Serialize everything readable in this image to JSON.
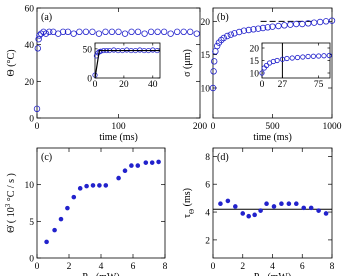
{
  "chart_data": [
    {
      "type": "scatter",
      "label": "(a)",
      "xlabel": [
        {
          "text": "time (ms)"
        }
      ],
      "ylabel": [
        {
          "text": "Θ (°C)"
        }
      ],
      "xlim": [
        0,
        200
      ],
      "ylim": [
        0,
        60
      ],
      "xticks": [
        0,
        100,
        200
      ],
      "yticks": [
        0,
        20,
        40,
        60
      ],
      "series": [
        {
          "color": "#2222cc",
          "marker": "open",
          "x": [
            0,
            1,
            2,
            3,
            5,
            8,
            11,
            15,
            20,
            26,
            32,
            38,
            45,
            52,
            60,
            68,
            76,
            84,
            92,
            100,
            108,
            116,
            124,
            132,
            140,
            148,
            156,
            164,
            172,
            180,
            188,
            196
          ],
          "values": [
            5,
            38,
            43,
            45,
            46,
            47,
            46,
            47,
            47,
            46,
            47,
            47,
            46,
            47,
            47,
            47,
            46,
            47,
            47,
            47,
            46,
            47,
            47,
            46,
            47,
            47,
            47,
            46,
            47,
            47,
            47,
            46
          ]
        }
      ],
      "inset": {
        "type": "scatter",
        "xlim": [
          0,
          45
        ],
        "ylim": [
          0,
          60
        ],
        "xticks": [
          0,
          20,
          40
        ],
        "yticks": [
          0,
          50
        ],
        "series": [
          {
            "color": "#2222cc",
            "marker": "open",
            "x": [
              0,
              1,
              2,
              3,
              4,
              6,
              8,
              10,
              13,
              16,
              19,
              22,
              25,
              28,
              31,
              34,
              37,
              40,
              43
            ],
            "values": [
              5,
              38,
              43,
              45,
              46,
              47,
              47,
              47,
              48,
              47,
              47,
              48,
              47,
              47,
              48,
              47,
              47,
              48,
              47
            ]
          },
          {
            "color": "#000000",
            "marker": "line",
            "x": [
              0,
              3,
              45
            ],
            "values": [
              0,
              47,
              47
            ]
          }
        ]
      }
    },
    {
      "type": "scatter",
      "label": "(b)",
      "xlabel": [
        {
          "text": "time (ms)"
        }
      ],
      "ylabel": [
        {
          "text": "σ (μm)"
        }
      ],
      "xlim": [
        0,
        1000
      ],
      "ylim": [
        5.5,
        22
      ],
      "xticks": [
        0,
        500,
        1000
      ],
      "yticks": [
        10,
        15,
        20
      ],
      "reference_lines": [
        {
          "y": 20,
          "range": [
            400,
            850
          ],
          "dash": true,
          "color": "#000000"
        }
      ],
      "series": [
        {
          "color": "#2222cc",
          "marker": "open",
          "x": [
            0,
            5,
            10,
            20,
            35,
            50,
            70,
            90,
            120,
            150,
            180,
            220,
            260,
            300,
            340,
            380,
            420,
            460,
            500,
            550,
            600,
            650,
            700,
            750,
            800,
            850,
            900,
            950,
            1000
          ],
          "values": [
            10,
            12.5,
            14,
            15.5,
            16.3,
            16.8,
            17.2,
            17.5,
            17.8,
            18,
            18.2,
            18.4,
            18.6,
            18.7,
            18.8,
            18.9,
            19,
            19.1,
            19.2,
            19.3,
            19.4,
            19.5,
            19.6,
            19.6,
            19.7,
            19.8,
            19.9,
            20,
            20.1
          ]
        }
      ],
      "inset": {
        "type": "scatter",
        "xlim": [
          0,
          90
        ],
        "ylim": [
          8,
          22
        ],
        "xticks": [
          0,
          27,
          75
        ],
        "yticks": [
          10,
          15,
          20
        ],
        "reference_lines": [
          {
            "x": 27,
            "color": "#000000"
          }
        ],
        "series": [
          {
            "color": "#2222cc",
            "marker": "open",
            "x": [
              0,
              3,
              6,
              10,
              15,
              20,
              27,
              33,
              40,
              47,
              54,
              61,
              68,
              75,
              82,
              89
            ],
            "values": [
              10,
              12,
              13,
              14,
              14.6,
              15,
              15.5,
              15.8,
              16,
              16.2,
              16.4,
              16.6,
              16.7,
              16.8,
              16.9,
              17
            ]
          }
        ]
      }
    },
    {
      "type": "scatter",
      "label": "(c)",
      "xlabel": [
        {
          "text": "P"
        },
        {
          "sub": "in"
        },
        {
          "text": " (mW)"
        }
      ],
      "ylabel": [
        {
          "text": "Θ̇  ( 10"
        },
        {
          "sup": "3"
        },
        {
          "text": " °C / s )"
        }
      ],
      "xlim": [
        0,
        8
      ],
      "ylim": [
        0,
        15
      ],
      "xticks": [
        0,
        2,
        4,
        6,
        8
      ],
      "yticks": [
        0,
        5,
        10
      ],
      "series": [
        {
          "color": "#2222cc",
          "marker": "filled",
          "x": [
            0.6,
            1.1,
            1.5,
            1.9,
            2.3,
            2.7,
            3.1,
            3.5,
            3.9,
            4.3,
            5.1,
            5.5,
            5.9,
            6.3,
            6.8,
            7.2,
            7.6
          ],
          "values": [
            2.2,
            3.8,
            5.3,
            6.8,
            8.3,
            9.5,
            9.8,
            9.9,
            9.9,
            9.9,
            10.9,
            11.9,
            12.6,
            12.6,
            13,
            13,
            13.1
          ]
        }
      ]
    },
    {
      "type": "scatter",
      "label": "(d)",
      "xlabel": [
        {
          "text": "P"
        },
        {
          "sub": "in"
        },
        {
          "text": " (mW)"
        }
      ],
      "ylabel": [
        {
          "text": "τ"
        },
        {
          "sub": "Θ"
        },
        {
          "text": " (ms)"
        }
      ],
      "xlim": [
        0,
        8
      ],
      "ylim": [
        0.7,
        8.6
      ],
      "xticks": [
        0,
        2,
        4,
        6,
        8
      ],
      "yticks": [
        2,
        4,
        6,
        8
      ],
      "reference_lines": [
        {
          "y": 4.2,
          "color": "#000000"
        }
      ],
      "series": [
        {
          "color": "#2222cc",
          "marker": "filled",
          "x": [
            0.5,
            1,
            1.5,
            2,
            2.4,
            2.8,
            3.2,
            3.6,
            4.1,
            4.6,
            5.1,
            5.6,
            6.1,
            6.6,
            7.1,
            7.6
          ],
          "values": [
            4.6,
            4.8,
            4.4,
            3.9,
            3.7,
            3.8,
            4.1,
            4.6,
            4.4,
            4.6,
            4.6,
            4.6,
            4.3,
            4.3,
            4.1,
            3.9
          ]
        }
      ]
    }
  ]
}
